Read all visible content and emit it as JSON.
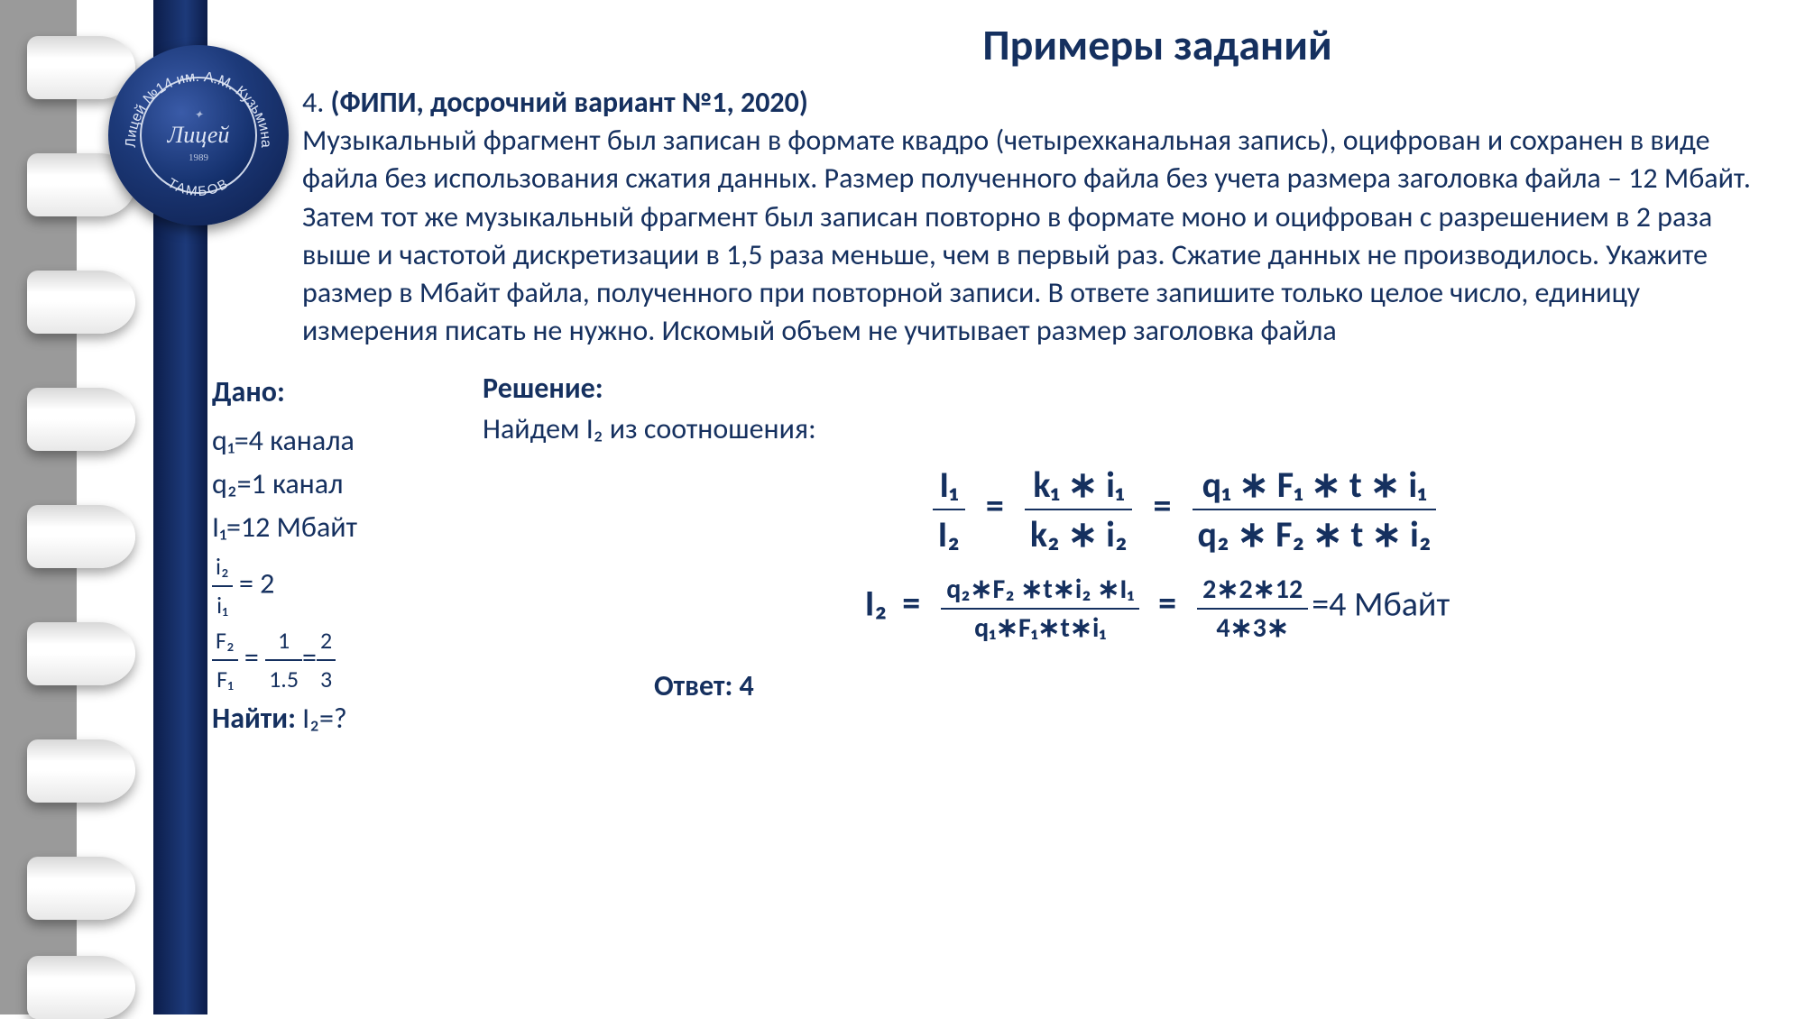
{
  "colors": {
    "navy": "#15305f",
    "band1": "#0c1d4a",
    "band2": "#1d3a7a",
    "grey": "#9a9a9a"
  },
  "logo": {
    "top_text": "Лицей №14 им. А.М. Кузьмина",
    "bottom_text": "ТАМБОВ",
    "center": "Лицей",
    "year": "1989"
  },
  "title": "Примеры заданий",
  "task_number": "4.",
  "task_source": "(ФИПИ, досрочний вариант №1, 2020)",
  "task_text": "Музыкальный фрагмент был записан в формате квадро (четырехканальная запись), оцифрован и сохранен в виде файла без использования сжатия данных. Размер полученного файла без учета размера заголовка файла – 12 Мбайт. Затем тот же музыкальный фрагмент был записан повторно в формате моно и оцифрован с разрешением в 2 раза выше и частотой дискретизации в 1,5 раза меньше, чем в первый раз. Сжатие данных не производилось. Укажите размер в Мбайт файла, полученного при повторной записи. В ответе запишите только целое число, единицу измерения писать не нужно. Искомый объем не учитывает размер заголовка файла",
  "given": {
    "label": "Дано:",
    "q1": "q₁=4 канала",
    "q2": "q₂=1 канал",
    "I1": "I₁=12 Мбайт",
    "ratio_i_num": "i₂",
    "ratio_i_den": "i₁",
    "ratio_i_val": "2",
    "ratio_F_num": "F₂",
    "ratio_F_den": "F₁",
    "ratio_F_mid_num": "1",
    "ratio_F_mid_den": "1.5",
    "ratio_F_r_num": "2",
    "ratio_F_r_den": "3",
    "find": "Найти:",
    "find_what": "I₂=?"
  },
  "solution": {
    "label": "Решение:",
    "line1": "Найдем I₂ из соотношения:",
    "eq1": {
      "l_num": "I₁",
      "l_den": "I₂",
      "m_num": "k₁ ∗ i₁",
      "m_den": "k₂ ∗ i₂",
      "r_num": "q₁ ∗ F₁ ∗ t ∗ i₁",
      "r_den": "q₂ ∗ F₂ ∗ t ∗ i₂"
    },
    "eq2": {
      "lhs": "I₂",
      "f1_num": "q₂∗F₂ ∗t∗i₂  ∗I₁",
      "f1_den": "q₁∗F₁∗t∗i₁",
      "f2_num": "2∗2∗12",
      "f2_den": "4∗3∗",
      "result": "=4 Мбайт"
    }
  },
  "answer_label": "Ответ:",
  "answer_value": "4",
  "binder_positions": [
    40,
    170,
    300,
    430,
    560,
    690,
    820,
    950,
    1060
  ]
}
